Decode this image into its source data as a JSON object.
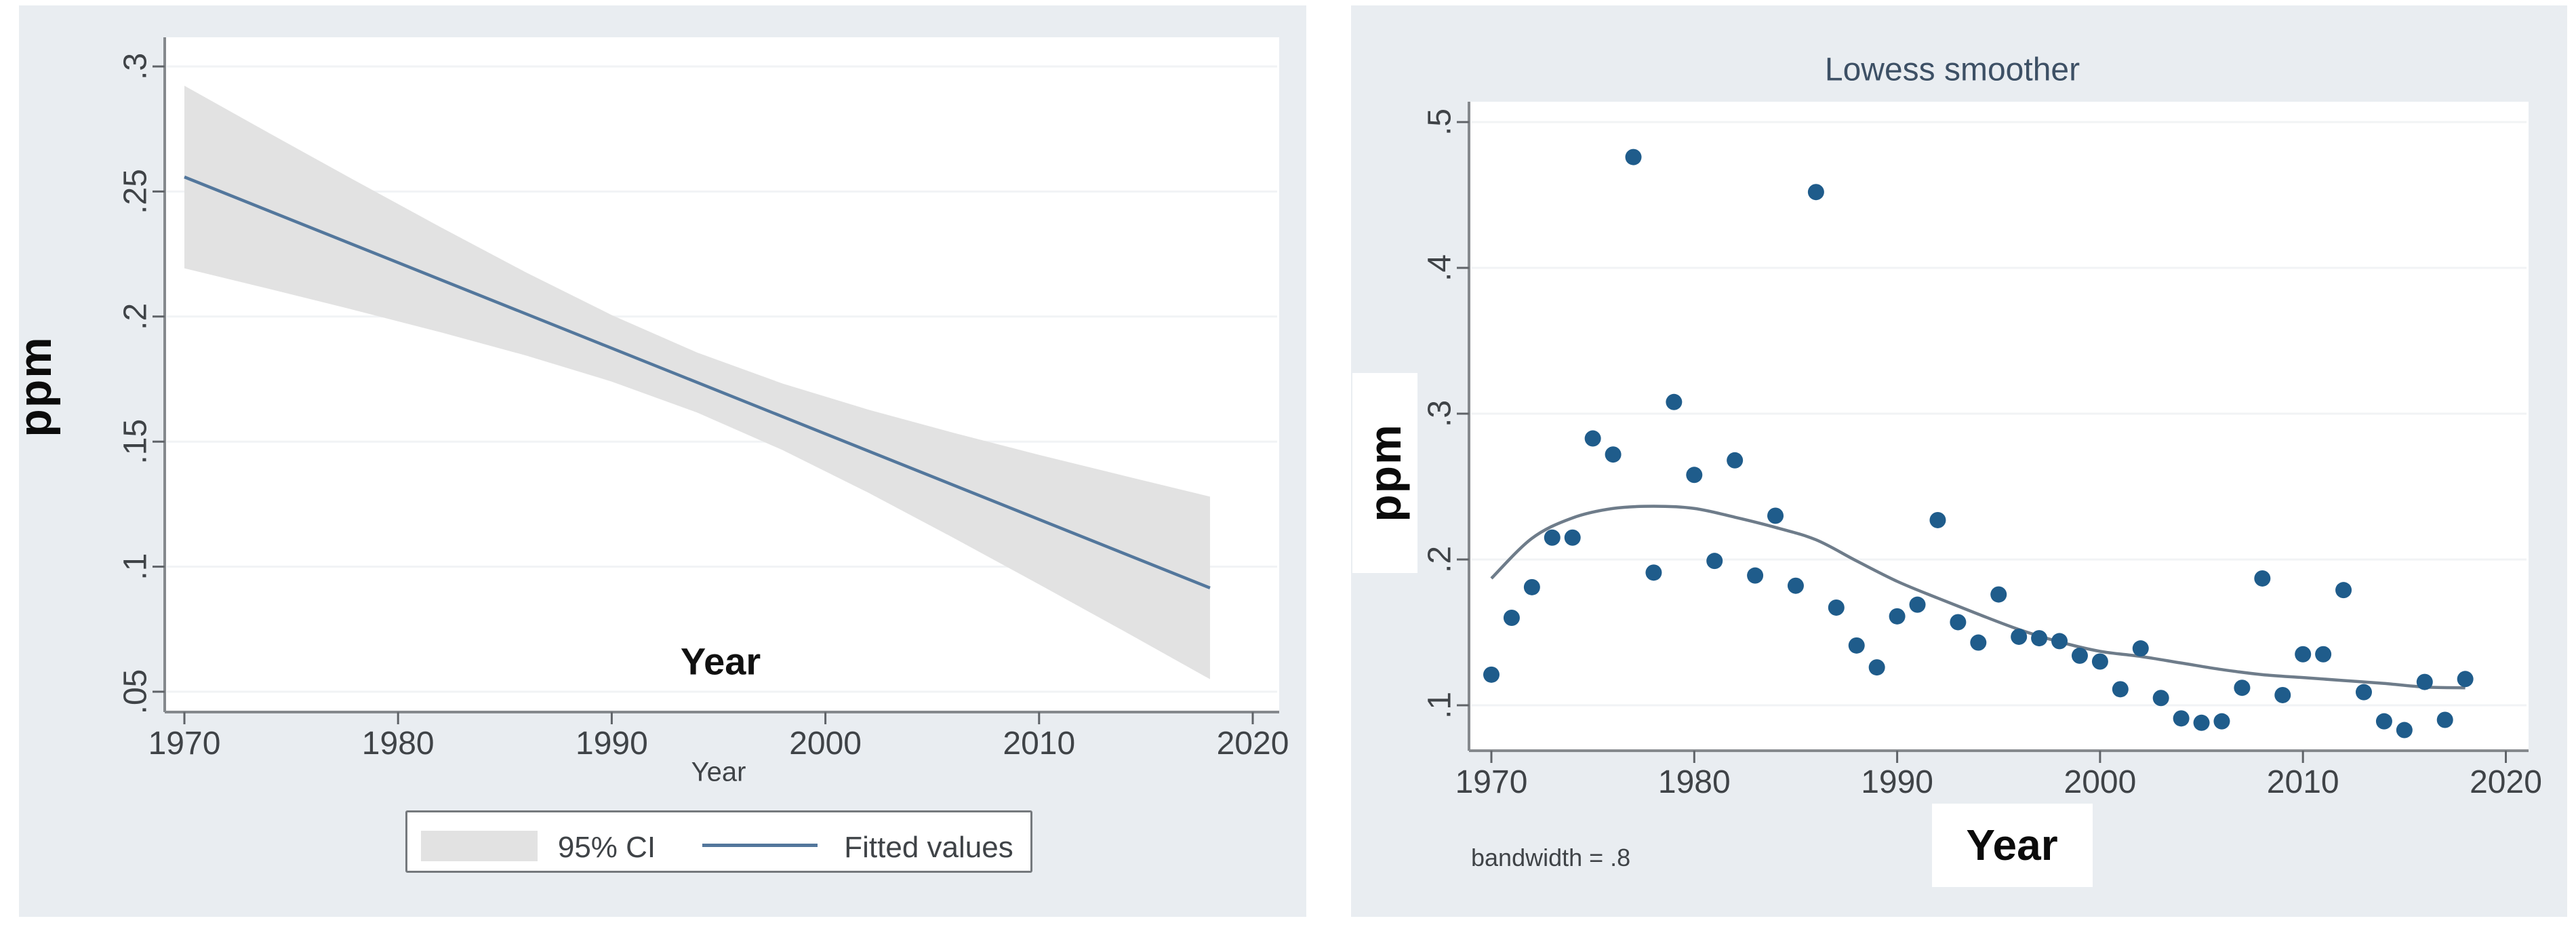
{
  "chart_data": [
    {
      "type": "line",
      "title": "",
      "xlabel": "Year",
      "inner_label": "Year",
      "ylabel": "ppm",
      "xlim": [
        1968.5,
        2021.5
      ],
      "ylim": [
        0.042,
        0.312
      ],
      "grid": true,
      "x_ticks": [
        1970,
        1980,
        1990,
        2000,
        2010,
        2020
      ],
      "y_ticks": {
        "values": [
          0.3,
          0.25,
          0.2,
          0.15,
          0.1,
          0.05
        ],
        "labels": [
          ".3",
          ".25",
          ".2",
          ".15",
          ".1",
          ".05"
        ]
      },
      "fitted_line": {
        "x": [
          1970,
          2018
        ],
        "y": [
          0.2558,
          0.0915
        ]
      },
      "ci_band": {
        "years": [
          1970,
          1974,
          1978,
          1982,
          1986,
          1990,
          1994,
          1998,
          2002,
          2006,
          2010,
          2014,
          2018
        ],
        "lo": [
          0.2193,
          0.211,
          0.2025,
          0.1937,
          0.1844,
          0.174,
          0.1616,
          0.1466,
          0.1296,
          0.1115,
          0.0929,
          0.0741,
          0.055
        ],
        "hi": [
          0.2923,
          0.2732,
          0.2543,
          0.2357,
          0.2176,
          0.2006,
          0.1856,
          0.1732,
          0.1628,
          0.1535,
          0.1447,
          0.1363,
          0.128
        ]
      },
      "legend": [
        {
          "swatch": "area",
          "label": "95% CI"
        },
        {
          "swatch": "line",
          "label": "Fitted values"
        }
      ],
      "legend_position": "bottom-center",
      "colors": {
        "fit_line": "#53779c",
        "ci_band": "#e2e2e2"
      }
    },
    {
      "type": "scatter",
      "title": "Lowess smoother",
      "xlabel": "Year",
      "ylabel": "ppm",
      "note": "bandwidth = .8",
      "xlim": [
        1968.9,
        2021.1
      ],
      "ylim": [
        0.055,
        0.515
      ],
      "grid": true,
      "x_ticks": [
        1970,
        1980,
        1990,
        2000,
        2010,
        2020
      ],
      "y_ticks": {
        "values": [
          0.5,
          0.4,
          0.3,
          0.2,
          0.1
        ],
        "labels": [
          ".5",
          ".4",
          ".3",
          ".2",
          ".1"
        ]
      },
      "points": {
        "years": [
          1970,
          1971,
          1972,
          1973,
          1974,
          1975,
          1976,
          1977,
          1978,
          1979,
          1980,
          1981,
          1982,
          1983,
          1984,
          1985,
          1986,
          1987,
          1988,
          1989,
          1990,
          1991,
          1992,
          1993,
          1994,
          1995,
          1996,
          1997,
          1998,
          1999,
          2000,
          2001,
          2002,
          2003,
          2004,
          2005,
          2006,
          2007,
          2008,
          2009,
          2010,
          2011,
          2012,
          2013,
          2014,
          2015,
          2016,
          2017,
          2018
        ],
        "ppm": [
          0.121,
          0.16,
          0.181,
          0.215,
          0.215,
          0.283,
          0.272,
          0.476,
          0.191,
          0.308,
          0.258,
          0.199,
          0.268,
          0.189,
          0.23,
          0.182,
          0.452,
          0.167,
          0.141,
          0.126,
          0.161,
          0.169,
          0.227,
          0.157,
          0.143,
          0.176,
          0.147,
          0.146,
          0.144,
          0.134,
          0.13,
          0.111,
          0.139,
          0.105,
          0.091,
          0.088,
          0.089,
          0.112,
          0.187,
          0.107,
          0.135,
          0.135,
          0.179,
          0.109,
          0.089,
          0.083,
          0.116,
          0.09,
          0.118
        ]
      },
      "lowess_line": {
        "years": [
          1970,
          1972,
          1974,
          1976,
          1978,
          1980,
          1982,
          1984,
          1986,
          1988,
          1990,
          1992,
          1994,
          1996,
          1998,
          2000,
          2002,
          2004,
          2006,
          2008,
          2010,
          2012,
          2014,
          2016,
          2018
        ],
        "ppm": [
          0.187,
          0.2145,
          0.2285,
          0.235,
          0.2365,
          0.235,
          0.229,
          0.222,
          0.2135,
          0.199,
          0.185,
          0.1735,
          0.1625,
          0.152,
          0.1435,
          0.137,
          0.1335,
          0.129,
          0.1245,
          0.121,
          0.119,
          0.117,
          0.115,
          0.1125,
          0.112
        ]
      },
      "colors": {
        "dot": "#1f5c8b",
        "lowess_line": "#6e7c8a"
      }
    }
  ]
}
